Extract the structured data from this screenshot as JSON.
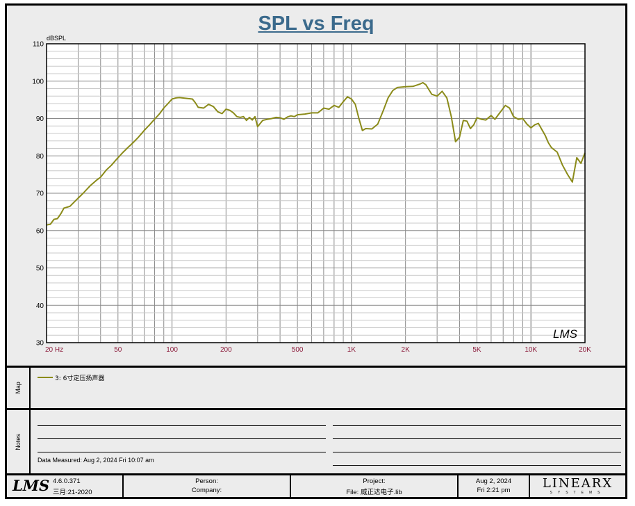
{
  "chart_data": {
    "type": "line",
    "title": "SPL vs Freq",
    "ylabel": "dBSPL",
    "x_scale": "log",
    "xlim": [
      20,
      20000
    ],
    "ylim": [
      30,
      110
    ],
    "grid": true,
    "y_ticks": [
      "30",
      "40",
      "50",
      "60",
      "70",
      "80",
      "90",
      "100",
      "110"
    ],
    "x_tick_labels": [
      {
        "value": 20,
        "label": "20  Hz"
      },
      {
        "value": 50,
        "label": "50"
      },
      {
        "value": 100,
        "label": "100"
      },
      {
        "value": 200,
        "label": "200"
      },
      {
        "value": 500,
        "label": "500"
      },
      {
        "value": 1000,
        "label": "1K"
      },
      {
        "value": 2000,
        "label": "2K"
      },
      {
        "value": 5000,
        "label": "5K"
      },
      {
        "value": 10000,
        "label": "10K"
      },
      {
        "value": 20000,
        "label": "20K"
      }
    ],
    "series": [
      {
        "name": "3: 6寸定压扬声器",
        "color": "#8b8b1a",
        "points": [
          [
            20,
            61.5
          ],
          [
            21,
            61.7
          ],
          [
            22,
            63
          ],
          [
            23,
            63.2
          ],
          [
            24,
            64.5
          ],
          [
            25,
            66
          ],
          [
            27,
            66.5
          ],
          [
            29,
            68
          ],
          [
            32,
            70
          ],
          [
            35,
            72
          ],
          [
            38,
            73.5
          ],
          [
            40,
            74.3
          ],
          [
            43,
            76.2
          ],
          [
            46,
            77.5
          ],
          [
            50,
            79.5
          ],
          [
            53,
            80.8
          ],
          [
            57,
            82.3
          ],
          [
            60,
            83.3
          ],
          [
            65,
            85
          ],
          [
            70,
            86.8
          ],
          [
            75,
            88.3
          ],
          [
            80,
            89.8
          ],
          [
            85,
            91.2
          ],
          [
            90,
            92.8
          ],
          [
            95,
            94
          ],
          [
            100,
            95.2
          ],
          [
            105,
            95.5
          ],
          [
            110,
            95.6
          ],
          [
            120,
            95.4
          ],
          [
            130,
            95.2
          ],
          [
            135,
            94.2
          ],
          [
            140,
            93
          ],
          [
            150,
            92.8
          ],
          [
            160,
            93.8
          ],
          [
            170,
            93.2
          ],
          [
            180,
            91.8
          ],
          [
            190,
            91.3
          ],
          [
            200,
            92.5
          ],
          [
            210,
            92.2
          ],
          [
            220,
            91.5
          ],
          [
            230,
            90.5
          ],
          [
            240,
            90.3
          ],
          [
            250,
            90.5
          ],
          [
            260,
            89.5
          ],
          [
            270,
            90.3
          ],
          [
            280,
            89.6
          ],
          [
            290,
            90.5
          ],
          [
            300,
            87.8
          ],
          [
            320,
            89.5
          ],
          [
            340,
            89.8
          ],
          [
            360,
            90
          ],
          [
            380,
            90.3
          ],
          [
            400,
            90.2
          ],
          [
            420,
            89.8
          ],
          [
            440,
            90.4
          ],
          [
            460,
            90.7
          ],
          [
            480,
            90.5
          ],
          [
            500,
            91
          ],
          [
            550,
            91.2
          ],
          [
            600,
            91.5
          ],
          [
            650,
            91.5
          ],
          [
            700,
            92.8
          ],
          [
            750,
            92.5
          ],
          [
            800,
            93.5
          ],
          [
            850,
            93
          ],
          [
            900,
            94.5
          ],
          [
            950,
            95.8
          ],
          [
            1000,
            95.2
          ],
          [
            1050,
            93.8
          ],
          [
            1100,
            90
          ],
          [
            1150,
            86.8
          ],
          [
            1200,
            87.3
          ],
          [
            1300,
            87.2
          ],
          [
            1400,
            88.5
          ],
          [
            1500,
            92
          ],
          [
            1600,
            95.5
          ],
          [
            1700,
            97.5
          ],
          [
            1800,
            98.3
          ],
          [
            2000,
            98.5
          ],
          [
            2200,
            98.6
          ],
          [
            2400,
            99.2
          ],
          [
            2500,
            99.6
          ],
          [
            2600,
            99
          ],
          [
            2800,
            96.5
          ],
          [
            3000,
            96
          ],
          [
            3200,
            97.3
          ],
          [
            3400,
            95.5
          ],
          [
            3600,
            90.5
          ],
          [
            3800,
            83.8
          ],
          [
            4000,
            85
          ],
          [
            4200,
            89.5
          ],
          [
            4400,
            89.3
          ],
          [
            4600,
            87.3
          ],
          [
            4800,
            88.3
          ],
          [
            5000,
            90.2
          ],
          [
            5300,
            89.8
          ],
          [
            5600,
            89.6
          ],
          [
            6000,
            90.8
          ],
          [
            6300,
            89.8
          ],
          [
            6700,
            91.5
          ],
          [
            7200,
            93.5
          ],
          [
            7600,
            92.8
          ],
          [
            8000,
            90.5
          ],
          [
            8500,
            89.8
          ],
          [
            9000,
            90
          ],
          [
            9500,
            88.5
          ],
          [
            10000,
            87.5
          ],
          [
            10500,
            88.3
          ],
          [
            11000,
            88.7
          ],
          [
            12000,
            85.5
          ],
          [
            12500,
            83.5
          ],
          [
            13000,
            82.2
          ],
          [
            14000,
            81
          ],
          [
            15000,
            77.5
          ],
          [
            16000,
            75
          ],
          [
            17000,
            73
          ],
          [
            18000,
            79.5
          ],
          [
            19000,
            78
          ],
          [
            20000,
            80.8
          ]
        ]
      }
    ]
  },
  "legend": {
    "entry": "3: 6寸定压扬声器"
  },
  "side_labels": {
    "map": "Map",
    "notes": "Notes"
  },
  "notes": {
    "measured": "Data Measured: Aug  2, 2024  Fri 10:07 am"
  },
  "footer": {
    "logo": "LMS",
    "version": "4.6.0.371",
    "version_date": "三月:21-2020",
    "person_label": "Person:",
    "company_label": "Company:",
    "project_label": "Project:",
    "file_label": "File: 威正达电子.lib",
    "date": "Aug  2, 2024",
    "time": "Fri  2:21 pm",
    "brand": "LINEARX",
    "brand_sub": "SYSTEMS"
  },
  "watermark": "LMS"
}
